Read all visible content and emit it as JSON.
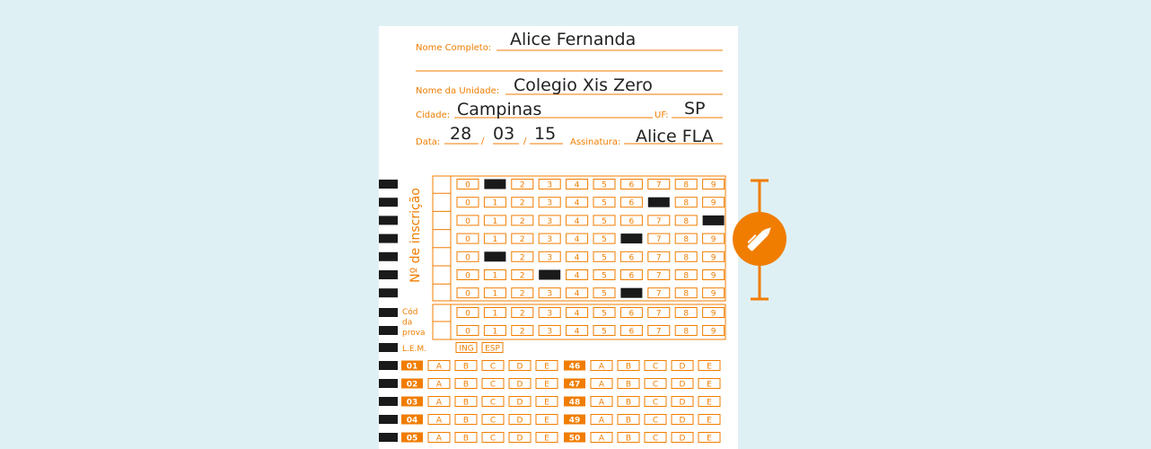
{
  "form": {
    "name_label": "Nome Completo:",
    "name": "Alice Fernanda",
    "unit_label": "Nome da Unidade:",
    "unit": "Colegio Xis Zero",
    "city_label": "Cidade:",
    "city": "Campinas",
    "state_label": "UF:",
    "state": "SP",
    "date_label": "Data:",
    "day": "28",
    "month": "03",
    "year": "15",
    "date_separator": "/",
    "signature_label": "Assinatura:",
    "signature": "Alice FLA"
  },
  "digits": [
    "0",
    "1",
    "2",
    "3",
    "4",
    "5",
    "6",
    "7",
    "8",
    "9"
  ],
  "registration": {
    "label": "Nº de inscrição",
    "marked": [
      1,
      7,
      9,
      6,
      1,
      3,
      6
    ]
  },
  "exam_code": {
    "label": [
      "Cód",
      "da",
      "prova"
    ],
    "marked": [
      null,
      null
    ]
  },
  "language": {
    "label": "L.E.M.",
    "options": [
      "ING",
      "ESP"
    ]
  },
  "answers": {
    "options": [
      "A",
      "B",
      "C",
      "D",
      "E"
    ],
    "questions": [
      [
        "01",
        "46"
      ],
      [
        "02",
        "47"
      ],
      [
        "03",
        "48"
      ],
      [
        "04",
        "49"
      ],
      [
        "05",
        "50"
      ]
    ]
  }
}
